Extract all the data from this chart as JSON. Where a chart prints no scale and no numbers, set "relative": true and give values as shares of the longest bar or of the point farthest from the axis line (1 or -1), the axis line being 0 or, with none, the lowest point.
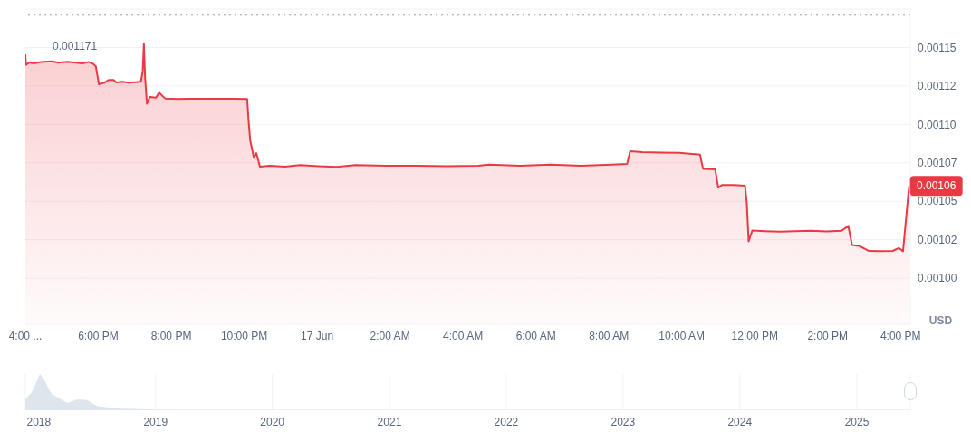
{
  "chart_data": [
    {
      "type": "area",
      "ylabel": "USD",
      "x": [
        "--06-16T16:00",
        "--06-16T16:01",
        "--06-16T16:06",
        "--06-16T16:14",
        "--06-16T16:21",
        "--06-16T16:29",
        "--06-16T16:44",
        "--06-16T16:54",
        "--06-16T17:09",
        "--06-16T17:24",
        "--06-16T17:34",
        "--06-16T17:44",
        "--06-16T17:52",
        "--06-16T17:56",
        "--06-16T18:01",
        "--06-16T18:10",
        "--06-16T18:17",
        "--06-16T18:25",
        "--06-16T18:30",
        "--06-16T18:40",
        "--06-16T18:50",
        "--06-16T19:00",
        "--06-16T19:10",
        "--06-16T19:13",
        "--06-16T19:15",
        "--06-16T19:17",
        "--06-16T19:20",
        "--06-16T19:25",
        "--06-16T19:35",
        "--06-16T19:40",
        "--06-16T19:50",
        "--06-16T20:11",
        "--06-16T20:31",
        "--06-16T21:01",
        "--06-16T21:41",
        "--06-16T22:05",
        "--06-16T22:07",
        "--06-16T22:10",
        "--06-16T22:16",
        "--06-16T22:20",
        "--06-16T22:26",
        "--06-16T22:42",
        "--06-16T23:07",
        "--06-16T23:32",
        "--06-17T00:02",
        "--06-17T00:32",
        "--06-17T01:03",
        "--06-17T01:53",
        "--06-17T02:44",
        "--06-17T03:34",
        "--06-17T04:25",
        "--06-17T04:43",
        "--06-17T05:34",
        "--06-17T06:24",
        "--06-17T07:14",
        "--06-17T08:05",
        "--06-17T08:30",
        "--06-17T08:35",
        "--06-17T08:55",
        "--06-17T09:25",
        "--06-17T09:56",
        "--06-17T10:30",
        "--06-17T10:35",
        "--06-17T10:55",
        "--06-17T11:00",
        "--06-17T11:06",
        "--06-17T11:26",
        "--06-17T11:44",
        "--06-17T11:47",
        "--06-17T11:50",
        "--06-17T11:56",
        "--06-17T12:17",
        "--06-17T12:42",
        "--06-17T13:07",
        "--06-17T13:32",
        "--06-17T13:58",
        "--06-17T14:23",
        "--06-17T14:34",
        "--06-17T14:40",
        "--06-17T14:53",
        "--06-17T15:08",
        "--06-17T15:26",
        "--06-17T15:47",
        "--06-17T15:57",
        "--06-17T16:04",
        "--06-17T16:14"
      ],
      "series": [
        {
          "color": "#ea3943",
          "values": [
            0.0011455,
            0.0011387,
            0.0011403,
            0.0011397,
            0.0011403,
            0.0011407,
            0.001141,
            0.0011401,
            0.0011407,
            0.0011401,
            0.0011397,
            0.0011406,
            0.0011393,
            0.0011377,
            0.0011261,
            0.0011271,
            0.0011289,
            0.0011289,
            0.0011273,
            0.0011277,
            0.0011271,
            0.0011275,
            0.0011277,
            0.0011342,
            0.0011525,
            0.0011302,
            0.0011135,
            0.0011179,
            0.0011174,
            0.0011206,
            0.0011169,
            0.0011165,
            0.0011167,
            0.0011167,
            0.0011167,
            0.0011165,
            0.0011037,
            0.0010894,
            0.0010783,
            0.0010813,
            0.0010725,
            0.0010731,
            0.0010725,
            0.0010735,
            0.0010728,
            0.0010723,
            0.0010735,
            0.0010731,
            0.0010731,
            0.0010728,
            0.0010731,
            0.0010738,
            0.0010731,
            0.0010738,
            0.0010731,
            0.0010738,
            0.0010742,
            0.0010825,
            0.0010819,
            0.0010817,
            0.0010815,
            0.0010803,
            0.0010711,
            0.0010707,
            0.0010589,
            0.0010605,
            0.0010605,
            0.0010601,
            0.0010487,
            0.0010239,
            0.001031,
            0.0010306,
            0.0010302,
            0.0010306,
            0.0010308,
            0.0010304,
            0.0010308,
            0.001034,
            0.0010216,
            0.0010208,
            0.0010177,
            0.0010175,
            0.0010177,
            0.0010196,
            0.0010175,
            0.00106
          ]
        }
      ],
      "xlim": [
        "--06-16T16:00",
        "--06-17T16:16"
      ],
      "xticks": [
        {
          "value": "--06-16T16:00",
          "label": "4:00 ..."
        },
        {
          "value": "--06-16T18:00",
          "label": "6:00 PM"
        },
        {
          "value": "--06-16T20:00",
          "label": "8:00 PM"
        },
        {
          "value": "--06-16T22:00",
          "label": "10:00 PM"
        },
        {
          "value": "--06-17T00:00",
          "label": "17 Jun"
        },
        {
          "value": "--06-17T02:00",
          "label": "2:00 AM"
        },
        {
          "value": "--06-17T04:00",
          "label": "4:00 AM"
        },
        {
          "value": "--06-17T06:00",
          "label": "6:00 AM"
        },
        {
          "value": "--06-17T08:00",
          "label": "8:00 AM"
        },
        {
          "value": "--06-17T10:00",
          "label": "10:00 AM"
        },
        {
          "value": "--06-17T12:00",
          "label": "12:00 PM"
        },
        {
          "value": "--06-17T14:00",
          "label": "2:00 PM"
        },
        {
          "value": "--06-17T16:00",
          "label": "4:00 PM"
        }
      ],
      "ylim": [
        0.00097,
        0.001175
      ],
      "yticks": [
        {
          "value": 0.001,
          "label": "0.00100"
        },
        {
          "value": 0.001025,
          "label": "0.00102"
        },
        {
          "value": 0.00105,
          "label": "0.00105"
        },
        {
          "value": 0.001075,
          "label": "0.00107"
        },
        {
          "value": 0.0011,
          "label": "0.00110"
        },
        {
          "value": 0.001125,
          "label": "0.00112"
        },
        {
          "value": 0.00115,
          "label": "0.00115"
        }
      ],
      "ref_lines": [
        {
          "axis": "y",
          "value": 0.001171,
          "label": "0.001171",
          "line_style": "dotted",
          "color": "#9e9e9e"
        }
      ],
      "annotations": [
        {
          "text": "0.00106",
          "x": "--06-17T16:14",
          "y": 0.00106
        }
      ],
      "grid": "y",
      "legend": false
    },
    {
      "type": "area",
      "relative": true,
      "x": [
        "2017-11-20",
        "2017-12-10",
        "2018-01-05",
        "2018-01-20",
        "2018-02-10",
        "2018-03-01",
        "2018-04-01",
        "2018-05-01",
        "2018-06-01",
        "2018-07-01",
        "2018-09-01",
        "2019-01-01",
        "2020-06-01",
        "2025-06-17"
      ],
      "series": [
        {
          "color": "#dfe5ec",
          "values": [
            0.3,
            0.5,
            1,
            0.8,
            0.45,
            0.35,
            0.2,
            0.3,
            0.28,
            0.12,
            0.05,
            0.02,
            0.01,
            0.01
          ]
        }
      ],
      "xlim": [
        "2017-11-20",
        "2025-06-17"
      ],
      "xticks": [
        "2018",
        "2019",
        "2020",
        "2021",
        "2022",
        "2023",
        "2024",
        "2025"
      ],
      "grid": "x",
      "legend": false
    }
  ]
}
